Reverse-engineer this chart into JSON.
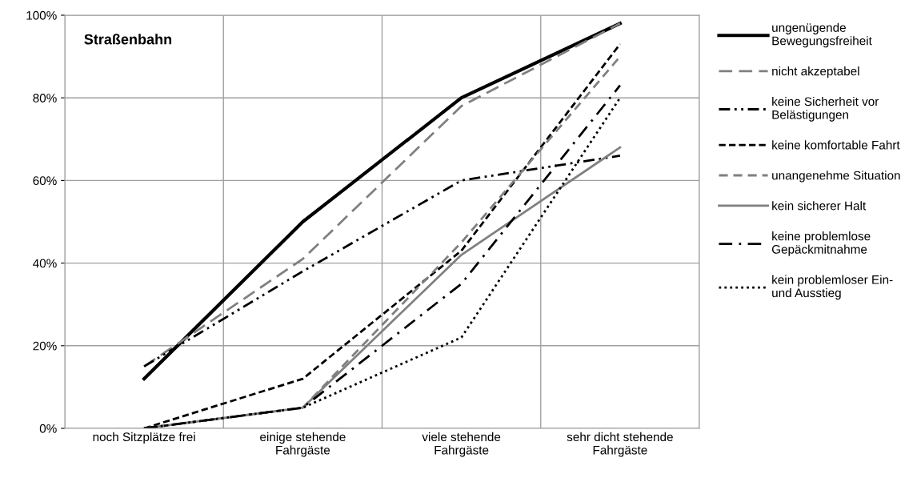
{
  "chart_data": {
    "type": "line",
    "title": "Straßenbahn",
    "categories": [
      "noch Sitzplätze frei",
      "einige stehende\nFahrgäste",
      "viele stehende\nFahrgäste",
      "sehr dicht stehende\nFahrgäste"
    ],
    "series": [
      {
        "name": "ungenügende\nBewegungsfreiheit",
        "color": "#000000",
        "line_style": "solid",
        "values": [
          12,
          50,
          80,
          98
        ]
      },
      {
        "name": "nicht akzeptabel",
        "color": "#808080",
        "line_style": "longdash",
        "values": [
          15,
          41,
          78,
          98
        ]
      },
      {
        "name": "keine Sicherheit vor\nBelästigungen",
        "color": "#000000",
        "line_style": "longdashdotdot",
        "values": [
          15,
          38,
          60,
          66
        ]
      },
      {
        "name": "keine komfortable Fahrt",
        "color": "#000000",
        "line_style": "dashed",
        "values": [
          0,
          12,
          43,
          93
        ]
      },
      {
        "name": "unangenehme Situation",
        "color": "#808080",
        "line_style": "mediumdash",
        "values": [
          0,
          5,
          45,
          90
        ]
      },
      {
        "name": "kein sicherer Halt",
        "color": "#808080",
        "line_style": "solid",
        "values": [
          0,
          5,
          42,
          68
        ]
      },
      {
        "name": "keine problemlose\nGepäckmitnahme",
        "color": "#000000",
        "line_style": "dashdot",
        "values": [
          0,
          5,
          35,
          83
        ]
      },
      {
        "name": "kein problemloser Ein-\nund Ausstieg",
        "color": "#000000",
        "line_style": "dotted",
        "values": [
          0,
          5,
          22,
          80
        ]
      }
    ],
    "ylim": [
      0,
      100
    ],
    "yticks": [
      {
        "value": 0,
        "label": "0%"
      },
      {
        "value": 20,
        "label": "20%"
      },
      {
        "value": 40,
        "label": "40%"
      },
      {
        "value": 60,
        "label": "60%"
      },
      {
        "value": 80,
        "label": "80%"
      },
      {
        "value": 100,
        "label": "100%"
      }
    ],
    "grid": true,
    "legend": "right",
    "marker": "none"
  }
}
